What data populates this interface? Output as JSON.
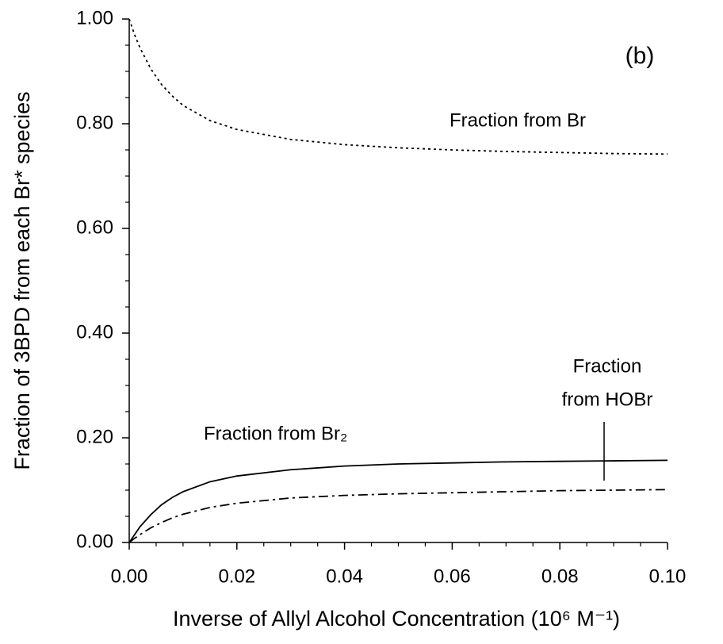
{
  "chart_data": {
    "type": "line",
    "ylabel": "Fraction of 3BPD from each Br* species",
    "xlabel": "Inverse of Allyl Alcohol Concentration (10⁶ M⁻¹)",
    "panel_label": "(b)",
    "x": [
      0,
      0.001,
      0.002,
      0.004,
      0.006,
      0.008,
      0.01,
      0.015,
      0.02,
      0.03,
      0.04,
      0.05,
      0.06,
      0.07,
      0.08,
      0.09,
      0.1
    ],
    "series": [
      {
        "name": "Fraction from Br",
        "color": "#000000",
        "dash": "3,4",
        "values": [
          1.0,
          0.97,
          0.945,
          0.905,
          0.875,
          0.853,
          0.835,
          0.806,
          0.789,
          0.77,
          0.76,
          0.754,
          0.75,
          0.747,
          0.745,
          0.743,
          0.742
        ]
      },
      {
        "name": "Fraction from Br₂",
        "color": "#000000",
        "dash": "12,5,3,5",
        "values": [
          0,
          0.008,
          0.015,
          0.028,
          0.038,
          0.047,
          0.054,
          0.067,
          0.075,
          0.085,
          0.09,
          0.093,
          0.095,
          0.097,
          0.099,
          0.1,
          0.101
        ]
      },
      {
        "name": [
          "Fraction",
          "from HOBr"
        ],
        "color": "#000000",
        "dash": "none",
        "values": [
          0,
          0.015,
          0.03,
          0.053,
          0.072,
          0.086,
          0.097,
          0.116,
          0.127,
          0.139,
          0.146,
          0.15,
          0.152,
          0.154,
          0.155,
          0.156,
          0.157
        ]
      }
    ],
    "xlim": [
      0,
      0.1
    ],
    "ylim": [
      0,
      1.0
    ],
    "xticks": [
      {
        "value": 0,
        "label": "0.00"
      },
      {
        "value": 0.02,
        "label": "0.02"
      },
      {
        "value": 0.04,
        "label": "0.04"
      },
      {
        "value": 0.06,
        "label": "0.06"
      },
      {
        "value": 0.08,
        "label": "0.08"
      },
      {
        "value": 0.1,
        "label": "0.10"
      }
    ],
    "yticks": [
      {
        "value": 0,
        "label": "0.00"
      },
      {
        "value": 0.2,
        "label": "0.20"
      },
      {
        "value": 0.4,
        "label": "0.40"
      },
      {
        "value": 0.6,
        "label": "0.60"
      },
      {
        "value": 0.8,
        "label": "0.80"
      },
      {
        "value": 1.0,
        "label": "1.00"
      }
    ],
    "xminorticks": [
      0.005,
      0.01,
      0.015,
      0.025,
      0.03,
      0.035,
      0.045,
      0.05,
      0.055,
      0.065,
      0.07,
      0.075,
      0.085,
      0.09,
      0.095
    ],
    "yminorticks": [
      0.05,
      0.1,
      0.15,
      0.25,
      0.3,
      0.35,
      0.45,
      0.5,
      0.55,
      0.65,
      0.7,
      0.75,
      0.85,
      0.9,
      0.95
    ],
    "grid": false
  }
}
